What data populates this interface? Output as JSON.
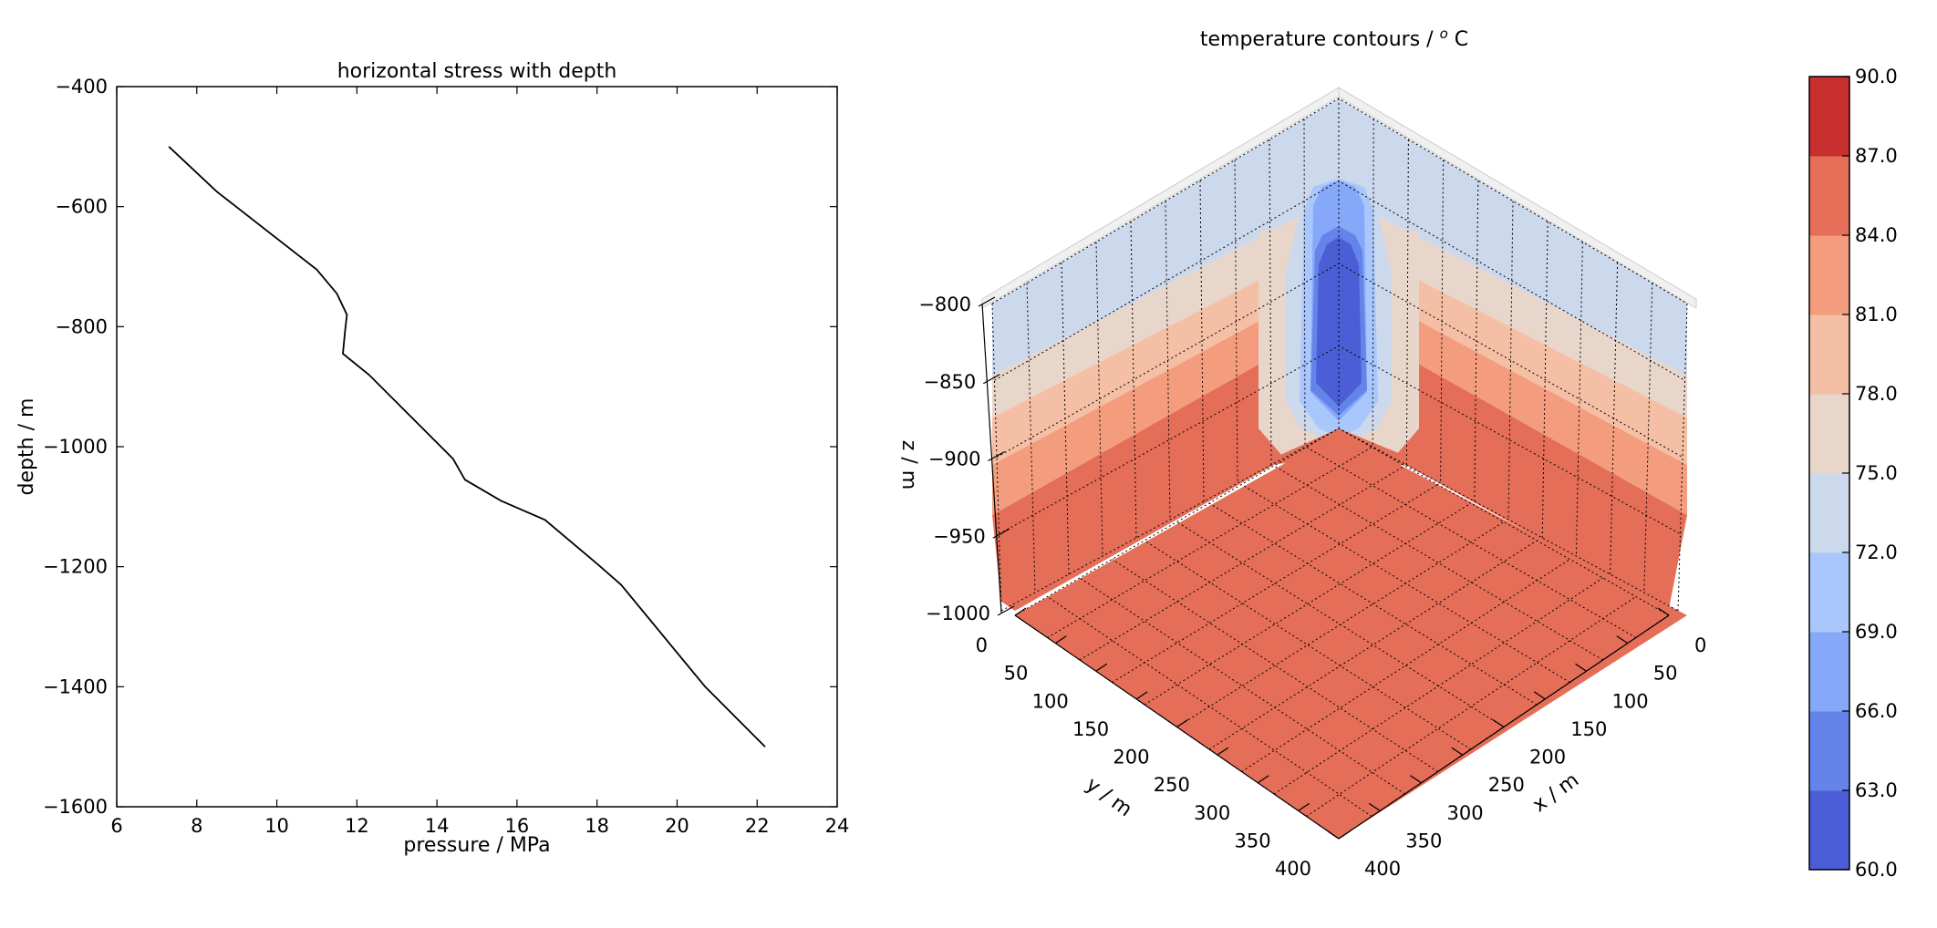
{
  "chart_data": [
    {
      "type": "line",
      "title": "horizontal stress with depth",
      "xlabel": "pressure / MPa",
      "ylabel": "depth / m",
      "xlim": [
        6,
        24
      ],
      "ylim": [
        -1600,
        -400
      ],
      "xticks": [
        6,
        8,
        10,
        12,
        14,
        16,
        18,
        20,
        22,
        24
      ],
      "yticks": [
        -400,
        -600,
        -800,
        -1000,
        -1200,
        -1400,
        -1600
      ],
      "grid": false,
      "series": [
        {
          "x": [
            7.3,
            8.5,
            11.0,
            11.5,
            11.75,
            11.7,
            11.65,
            12.3,
            14.4,
            14.7,
            15.6,
            16.7,
            18.0,
            18.6,
            20.7,
            22.2
          ],
          "y": [
            -500,
            -575,
            -705,
            -745,
            -780,
            -810,
            -845,
            -880,
            -1020,
            -1055,
            -1090,
            -1122,
            -1195,
            -1230,
            -1400,
            -1500
          ]
        }
      ]
    },
    {
      "type": "3d-contour",
      "title": "temperature contours / $^o$ C",
      "xlabel": "x / m",
      "ylabel": "y / m",
      "zlabel": "z / m",
      "xlim": [
        0,
        400
      ],
      "ylim": [
        0,
        400
      ],
      "zlim": [
        -1000,
        -800
      ],
      "xticks": [
        0,
        50,
        100,
        150,
        200,
        250,
        300,
        350,
        400
      ],
      "yticks": [
        0,
        50,
        100,
        150,
        200,
        250,
        300,
        350,
        400
      ],
      "zticks": [
        -800,
        -850,
        -900,
        -950,
        -1000
      ],
      "grid": true,
      "colorbar": {
        "levels": [
          60.0,
          63.0,
          66.0,
          69.0,
          72.0,
          75.0,
          78.0,
          81.0,
          84.0,
          87.0,
          90.0
        ],
        "tick_labels": [
          "90.0",
          "87.0",
          "84.0",
          "81.0",
          "78.0",
          "75.0",
          "72.0",
          "69.0",
          "66.0",
          "63.0",
          "60.0"
        ],
        "colors": [
          "#4b5ed6",
          "#6484ea",
          "#86a8f8",
          "#aac7fd",
          "#ccd8ec",
          "#e8d6cb",
          "#f4bfa4",
          "#f39c7e",
          "#e46e58",
          "#c8302f"
        ]
      },
      "wall_bands": [
        {
          "z_top": -800,
          "z_bottom": -835,
          "level": 72.0
        },
        {
          "z_top": -835,
          "z_bottom": -868,
          "level": 75.0
        },
        {
          "z_top": -868,
          "z_bottom": -900,
          "level": 78.0
        },
        {
          "z_top": -900,
          "z_bottom": -935,
          "level": 81.0
        },
        {
          "z_top": -935,
          "z_bottom": -1000,
          "level": 84.0
        }
      ],
      "floor_level": 84.0,
      "cold_plume": {
        "location": "x = 0, y = 0 corner",
        "z_range": [
          -870,
          -800
        ],
        "min_level": 60.0
      }
    }
  ]
}
